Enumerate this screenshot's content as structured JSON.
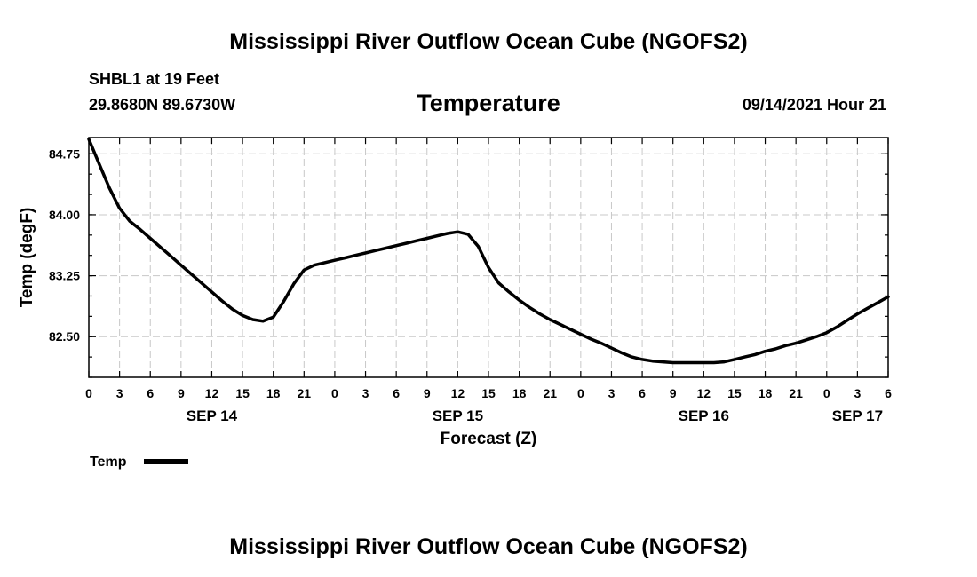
{
  "header": {
    "title": "Mississippi River Outflow Ocean Cube (NGOFS2)",
    "station": "SHBL1 at 19 Feet",
    "coords": "29.8680N  89.6730W",
    "variable": "Temperature",
    "datetime": "09/14/2021 Hour 21"
  },
  "footer": {
    "title": "Mississippi River Outflow Ocean Cube (NGOFS2)"
  },
  "colors": {
    "line": "#000000",
    "grid": "#c8c8c8",
    "background": "#ffffff"
  },
  "chart_data": {
    "type": "line",
    "title": "Temperature",
    "xlabel": "Forecast (Z)",
    "ylabel": "Temp (degF)",
    "xlim": [
      0,
      78
    ],
    "ylim": [
      82.0,
      84.95
    ],
    "grid": true,
    "y_ticks": [
      82.5,
      83.25,
      84.0,
      84.75
    ],
    "y_tick_labels": [
      "82.50",
      "83.25",
      "84.00",
      "84.75"
    ],
    "x_ticks": [
      0,
      3,
      6,
      9,
      12,
      15,
      18,
      21,
      24,
      27,
      30,
      33,
      36,
      39,
      42,
      45,
      48,
      51,
      54,
      57,
      60,
      63,
      66,
      69,
      72,
      75,
      78
    ],
    "x_tick_labels": [
      "0",
      "3",
      "6",
      "9",
      "12",
      "15",
      "18",
      "21",
      "0",
      "3",
      "6",
      "9",
      "12",
      "15",
      "18",
      "21",
      "0",
      "3",
      "6",
      "9",
      "12",
      "15",
      "18",
      "21",
      "0",
      "3",
      "6"
    ],
    "date_labels": [
      {
        "label": "SEP 14",
        "x": 12
      },
      {
        "label": "SEP 15",
        "x": 36
      },
      {
        "label": "SEP 16",
        "x": 60
      },
      {
        "label": "SEP 17",
        "x": 75
      }
    ],
    "legend": {
      "position": "bottom-left",
      "label": "Temp"
    },
    "series": [
      {
        "name": "Temp",
        "x": [
          0,
          1,
          2,
          3,
          4,
          5,
          6,
          7,
          8,
          9,
          10,
          11,
          12,
          13,
          14,
          15,
          16,
          17,
          18,
          19,
          20,
          21,
          22,
          23,
          24,
          25,
          26,
          27,
          28,
          29,
          30,
          31,
          32,
          33,
          34,
          35,
          36,
          37,
          38,
          39,
          40,
          41,
          42,
          43,
          44,
          45,
          46,
          47,
          48,
          49,
          50,
          51,
          52,
          53,
          54,
          55,
          56,
          57,
          58,
          59,
          60,
          61,
          62,
          63,
          64,
          65,
          66,
          67,
          68,
          69,
          70,
          71,
          72,
          73,
          74,
          75,
          76,
          77,
          78
        ],
        "values": [
          84.93,
          84.63,
          84.33,
          84.08,
          83.92,
          83.82,
          83.71,
          83.6,
          83.49,
          83.38,
          83.27,
          83.16,
          83.05,
          82.94,
          82.84,
          82.76,
          82.71,
          82.69,
          82.74,
          82.93,
          83.15,
          83.32,
          83.38,
          83.41,
          83.44,
          83.47,
          83.5,
          83.53,
          83.56,
          83.59,
          83.62,
          83.65,
          83.68,
          83.71,
          83.74,
          83.77,
          83.79,
          83.76,
          83.61,
          83.35,
          83.16,
          83.05,
          82.95,
          82.86,
          82.78,
          82.71,
          82.65,
          82.59,
          82.53,
          82.47,
          82.42,
          82.36,
          82.3,
          82.25,
          82.22,
          82.2,
          82.19,
          82.18,
          82.18,
          82.18,
          82.18,
          82.18,
          82.19,
          82.22,
          82.25,
          82.28,
          82.32,
          82.35,
          82.39,
          82.42,
          82.46,
          82.5,
          82.55,
          82.62,
          82.7,
          82.78,
          82.85,
          82.92,
          82.99
        ]
      }
    ]
  }
}
